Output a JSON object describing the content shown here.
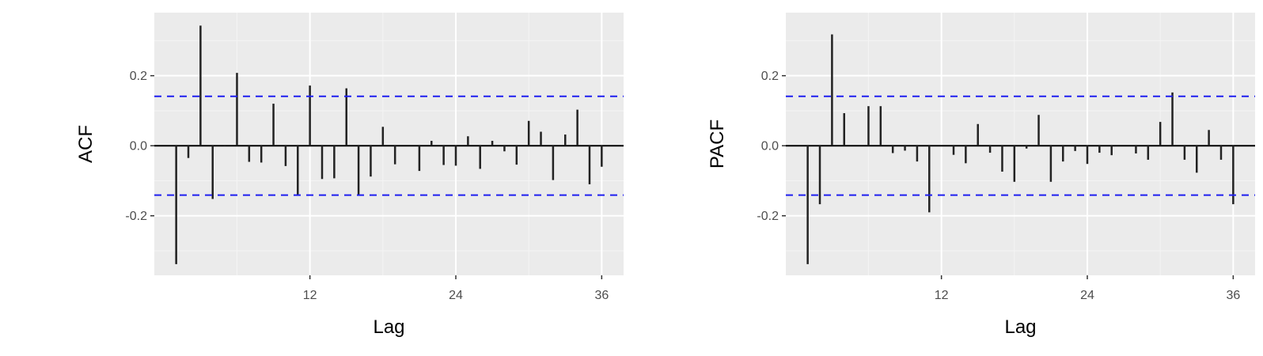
{
  "colors": {
    "panel_bg": "#EBEBEB",
    "grid_major": "#FFFFFF",
    "grid_minor": "#F4F4F4",
    "bar": "#222222",
    "zero_line": "#000000",
    "ci_line": "#1F1FF0",
    "tick_text": "#4D4D4D"
  },
  "chart_data": [
    {
      "type": "bar",
      "subtype": "correlogram",
      "title": "",
      "xlabel": "Lag",
      "ylabel": "ACF",
      "xlim": [
        -0.8,
        37.8
      ],
      "ylim": [
        -0.37,
        0.38
      ],
      "xticks": [
        12,
        24,
        36
      ],
      "xtick_labels": [
        "12",
        "24",
        "36"
      ],
      "yticks": [
        -0.2,
        0.0,
        0.2
      ],
      "ytick_labels": [
        "-0.2",
        "0.0",
        "0.2"
      ],
      "grid": true,
      "legend": "none",
      "ci_bounds": [
        0.141,
        -0.141
      ],
      "x": [
        1,
        2,
        3,
        4,
        5,
        6,
        7,
        8,
        9,
        10,
        11,
        12,
        13,
        14,
        15,
        16,
        17,
        18,
        19,
        20,
        21,
        22,
        23,
        24,
        25,
        26,
        27,
        28,
        29,
        30,
        31,
        32,
        33,
        34,
        35,
        36
      ],
      "values": [
        -0.338,
        -0.035,
        0.343,
        -0.152,
        0.002,
        0.208,
        -0.046,
        -0.048,
        0.12,
        -0.058,
        -0.142,
        0.172,
        -0.095,
        -0.093,
        0.164,
        -0.141,
        -0.088,
        0.054,
        -0.053,
        0.0,
        -0.072,
        0.014,
        -0.055,
        -0.057,
        0.027,
        -0.066,
        0.014,
        -0.016,
        -0.054,
        0.071,
        0.04,
        -0.098,
        0.032,
        0.103,
        -0.11,
        -0.06
      ]
    },
    {
      "type": "bar",
      "subtype": "correlogram",
      "title": "",
      "xlabel": "Lag",
      "ylabel": "PACF",
      "xlim": [
        -0.8,
        37.8
      ],
      "ylim": [
        -0.37,
        0.38
      ],
      "xticks": [
        12,
        24,
        36
      ],
      "xtick_labels": [
        "12",
        "24",
        "36"
      ],
      "yticks": [
        -0.2,
        0.0,
        0.2
      ],
      "ytick_labels": [
        "-0.2",
        "0.0",
        "0.2"
      ],
      "grid": true,
      "legend": "none",
      "ci_bounds": [
        0.141,
        -0.141
      ],
      "x": [
        1,
        2,
        3,
        4,
        5,
        6,
        7,
        8,
        9,
        10,
        11,
        12,
        13,
        14,
        15,
        16,
        17,
        18,
        19,
        20,
        21,
        22,
        23,
        24,
        25,
        26,
        27,
        28,
        29,
        30,
        31,
        32,
        33,
        34,
        35,
        36
      ],
      "values": [
        -0.338,
        -0.167,
        0.318,
        0.093,
        0.0,
        0.113,
        0.113,
        -0.021,
        -0.014,
        -0.045,
        -0.19,
        0.0,
        -0.026,
        -0.05,
        0.062,
        -0.02,
        -0.074,
        -0.103,
        -0.008,
        0.088,
        -0.103,
        -0.045,
        -0.015,
        -0.052,
        -0.02,
        -0.027,
        0.0,
        -0.022,
        -0.04,
        0.068,
        0.152,
        -0.04,
        -0.077,
        0.045,
        -0.04,
        -0.167
      ]
    }
  ]
}
